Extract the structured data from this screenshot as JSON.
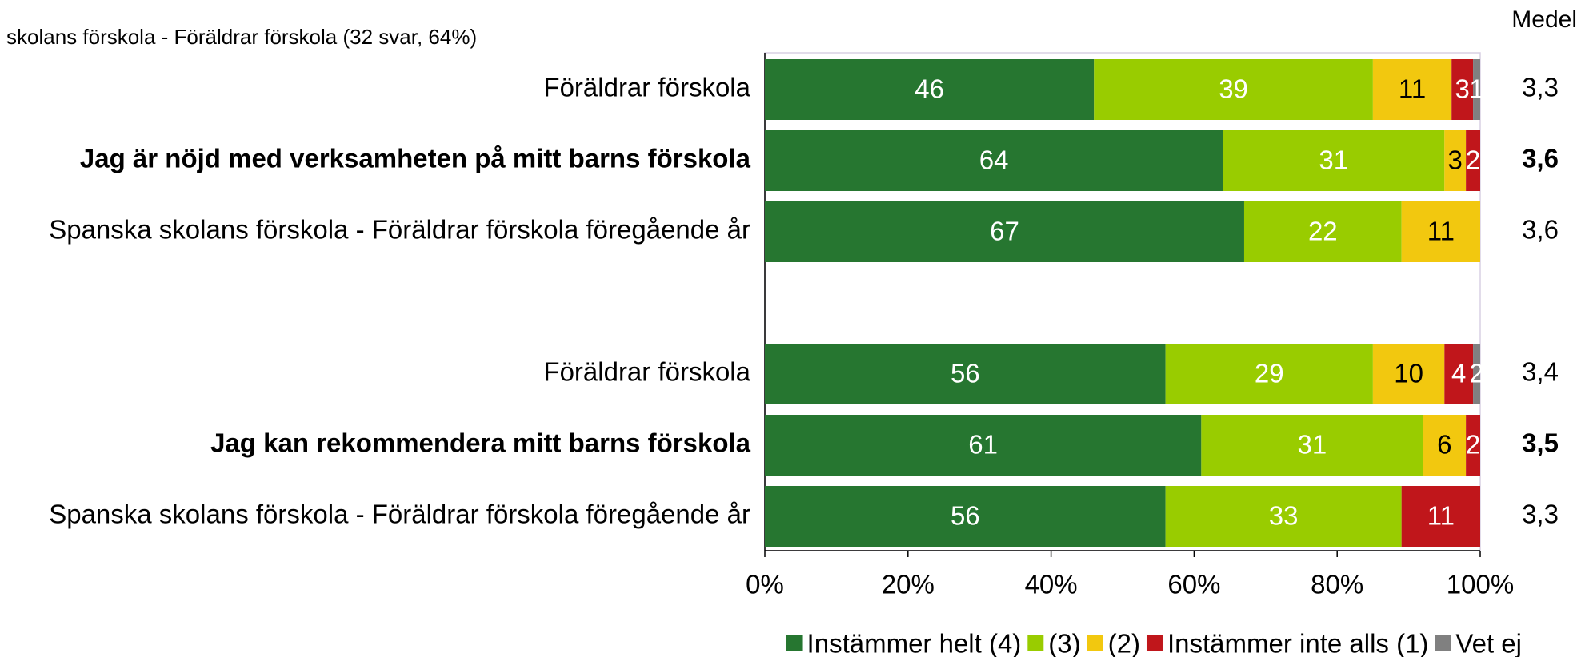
{
  "chart_data": {
    "type": "stacked_bar_horizontal",
    "title": "skolans förskola - Föräldrar förskola (32 svar, 64%)",
    "categories": [
      "Föräldrar förskola",
      "Jag är nöjd med verksamheten på mitt barns förskola",
      "Spanska skolans förskola - Föräldrar förskola föregående år",
      null,
      "Föräldrar förskola",
      "Jag kan rekommendera mitt barns förskola",
      "Spanska skolans förskola - Föräldrar förskola föregående år"
    ],
    "category_bold": [
      false,
      true,
      false,
      false,
      false,
      true,
      false
    ],
    "series": [
      {
        "name": "Instämmer helt (4)",
        "color": "#267630",
        "label_color": "#ffffff",
        "values": [
          46,
          64,
          67,
          null,
          56,
          61,
          56
        ]
      },
      {
        "name": "(3)",
        "color": "#99cc00",
        "label_color": "#ffffff",
        "values": [
          39,
          31,
          22,
          null,
          29,
          31,
          33
        ]
      },
      {
        "name": "(2)",
        "color": "#f2c80f",
        "label_color": "#000000",
        "values": [
          11,
          3,
          11,
          null,
          10,
          6,
          null
        ]
      },
      {
        "name": "Instämmer inte alls (1)",
        "color": "#c0161b",
        "label_color": "#ffffff",
        "values": [
          3,
          2,
          null,
          null,
          4,
          2,
          11
        ]
      },
      {
        "name": "Vet ej",
        "color": "#808080",
        "label_color": "#ffffff",
        "values": [
          1,
          null,
          null,
          null,
          2,
          null,
          null
        ]
      }
    ],
    "means": {
      "title": "Medel",
      "values": [
        3.3,
        3.6,
        3.6,
        null,
        3.4,
        3.5,
        3.3
      ],
      "value_labels": [
        "3,3",
        "3,6",
        "3,6",
        null,
        "3,4",
        "3,5",
        "3,3"
      ]
    },
    "xlim": [
      0,
      100
    ],
    "xticks": [
      {
        "value": 0,
        "label": "0%"
      },
      {
        "value": 20,
        "label": "20%"
      },
      {
        "value": 40,
        "label": "40%"
      },
      {
        "value": 60,
        "label": "60%"
      },
      {
        "value": 80,
        "label": "80%"
      },
      {
        "value": 100,
        "label": "100%"
      }
    ],
    "legend": "bottom"
  }
}
